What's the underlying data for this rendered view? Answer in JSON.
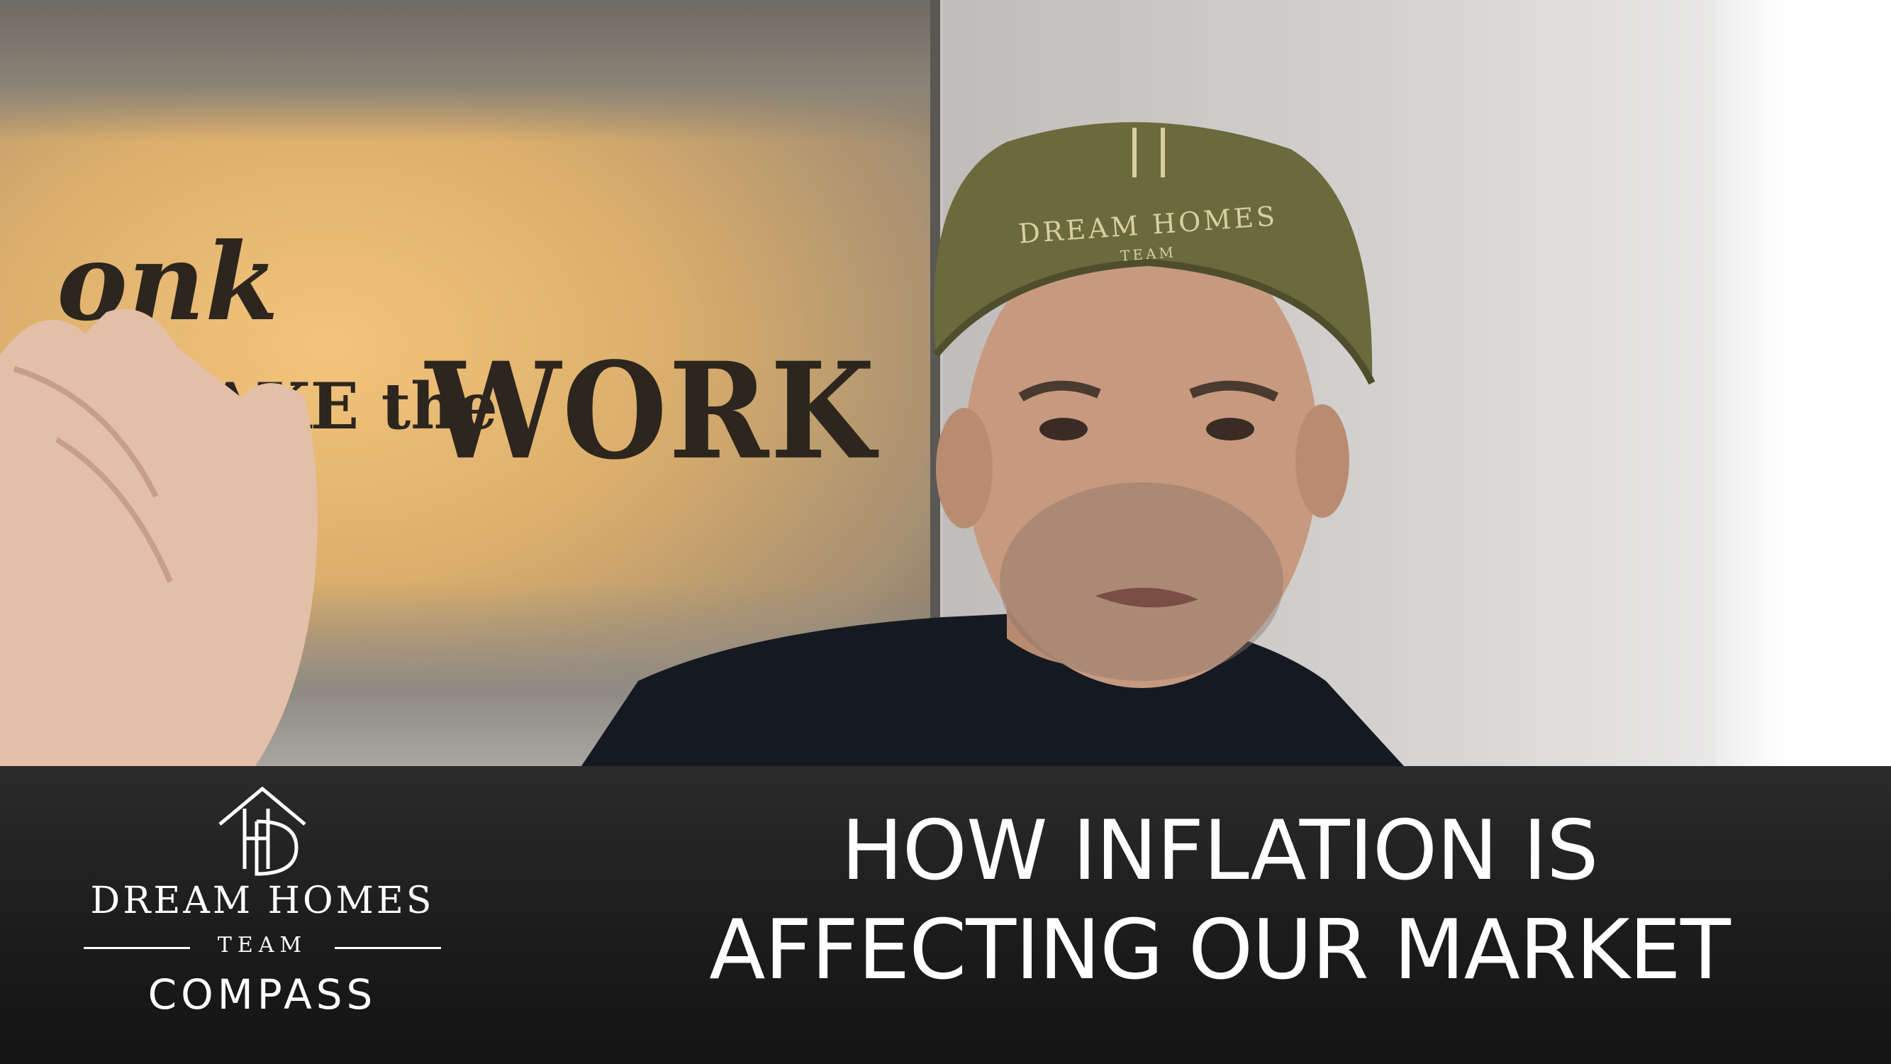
{
  "image": {
    "poster_text": [
      "onk",
      "MAKE",
      "the",
      "WORK"
    ],
    "cap_text": [
      "DREAM HOMES",
      "TEAM"
    ]
  },
  "brand": {
    "name": "DREAM HOMES",
    "team": "TEAM",
    "partner": "COMPASS",
    "mark_icon": "hd-monogram-house-icon"
  },
  "headline": {
    "line1": "HOW INFLATION IS",
    "line2": "AFFECTING OUR MARKET"
  },
  "colors": {
    "banner": "#1c1c1c",
    "text": "#ffffff",
    "cap": "#6b6a3c",
    "poster_gold": "#e2b064"
  }
}
